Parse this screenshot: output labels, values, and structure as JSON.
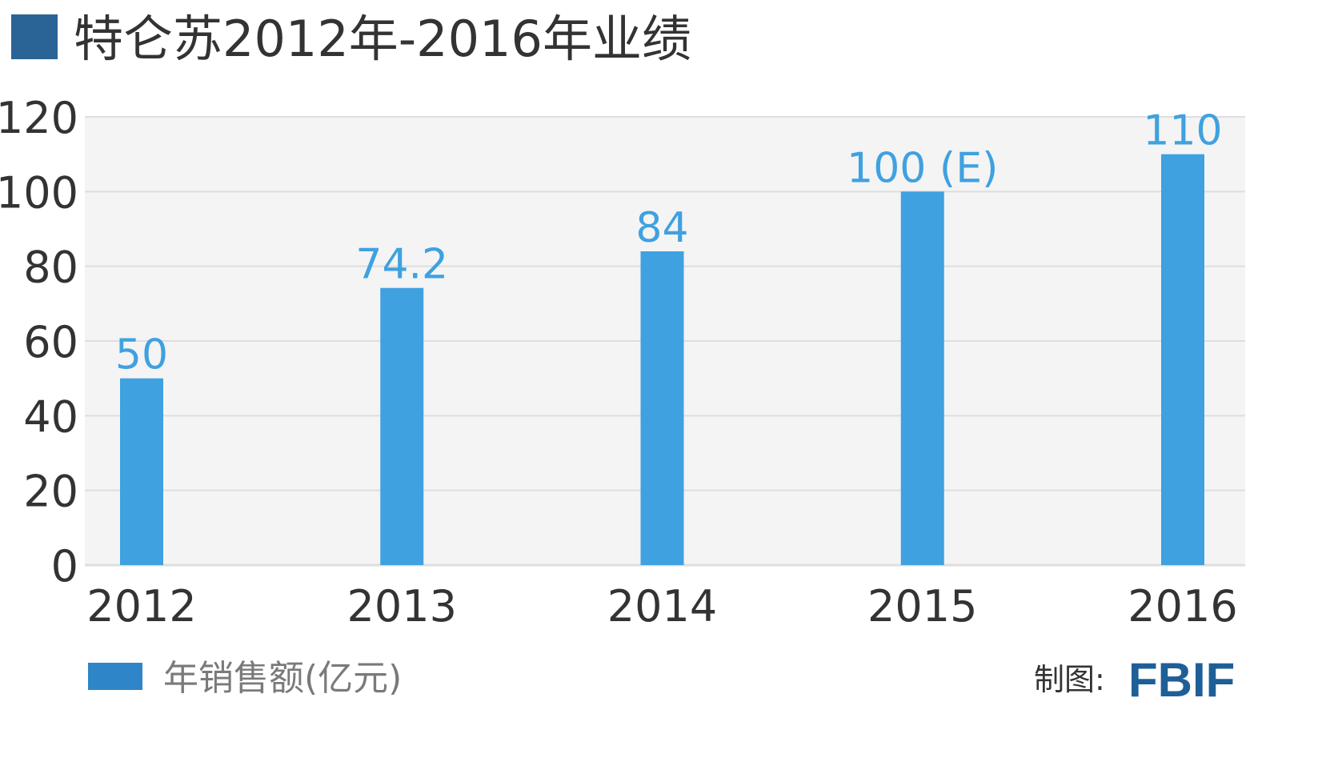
{
  "title": "特仑苏2012年-2016年业绩",
  "credit": {
    "label": "制图:",
    "brand": "FBIF"
  },
  "colors": {
    "title_marker": "#2a6496",
    "bar": "#3fa1e0",
    "legend_marker": "#2e86c8",
    "plot_bg": "#f4f4f4",
    "grid": "#dedede",
    "brand": "#1f5f97"
  },
  "chart_data": {
    "type": "bar",
    "categories": [
      "2012",
      "2013",
      "2014",
      "2015",
      "2016"
    ],
    "series": [
      {
        "name": "年销售额(亿元)",
        "values": [
          50,
          74.2,
          84,
          100,
          110
        ],
        "labels": [
          "50",
          "74.2",
          "84",
          "100 (E)",
          "110"
        ]
      }
    ],
    "ylim": [
      0,
      120
    ],
    "yticks": [
      0,
      20,
      40,
      60,
      80,
      100,
      120
    ],
    "grid": true,
    "legend": "bottom-left"
  }
}
